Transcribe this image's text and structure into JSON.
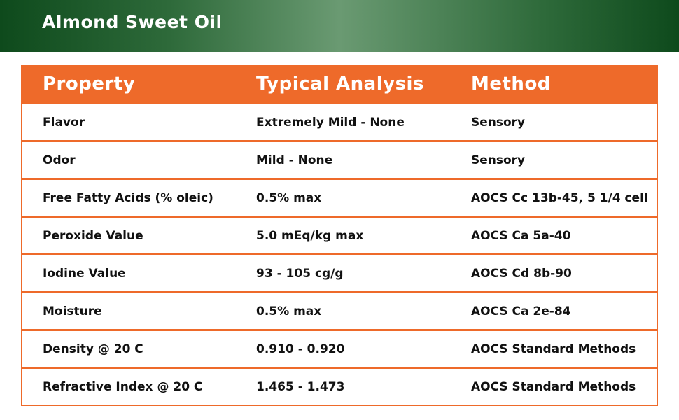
{
  "header": {
    "title": "Almond Sweet Oil"
  },
  "table": {
    "columns": [
      "Property",
      "Typical Analysis",
      "Method"
    ],
    "rows": [
      [
        "Flavor",
        "Extremely Mild - None",
        "Sensory"
      ],
      [
        "Odor",
        "Mild - None",
        "Sensory"
      ],
      [
        "Free Fatty Acids (% oleic)",
        "0.5% max",
        "AOCS Cc 13b-45, 5 1/4 cell"
      ],
      [
        "Peroxide Value",
        "5.0 mEq/kg max",
        "AOCS Ca 5a-40"
      ],
      [
        "Iodine Value",
        "93 - 105 cg/g",
        "AOCS Cd 8b-90"
      ],
      [
        "Moisture",
        "0.5% max",
        "AOCS Ca 2e-84"
      ],
      [
        "Density @ 20 C",
        "0.910 - 0.920",
        "AOCS Standard Methods"
      ],
      [
        "Refractive Index @ 20 C",
        "1.465 - 1.473",
        "AOCS Standard Methods"
      ]
    ]
  }
}
